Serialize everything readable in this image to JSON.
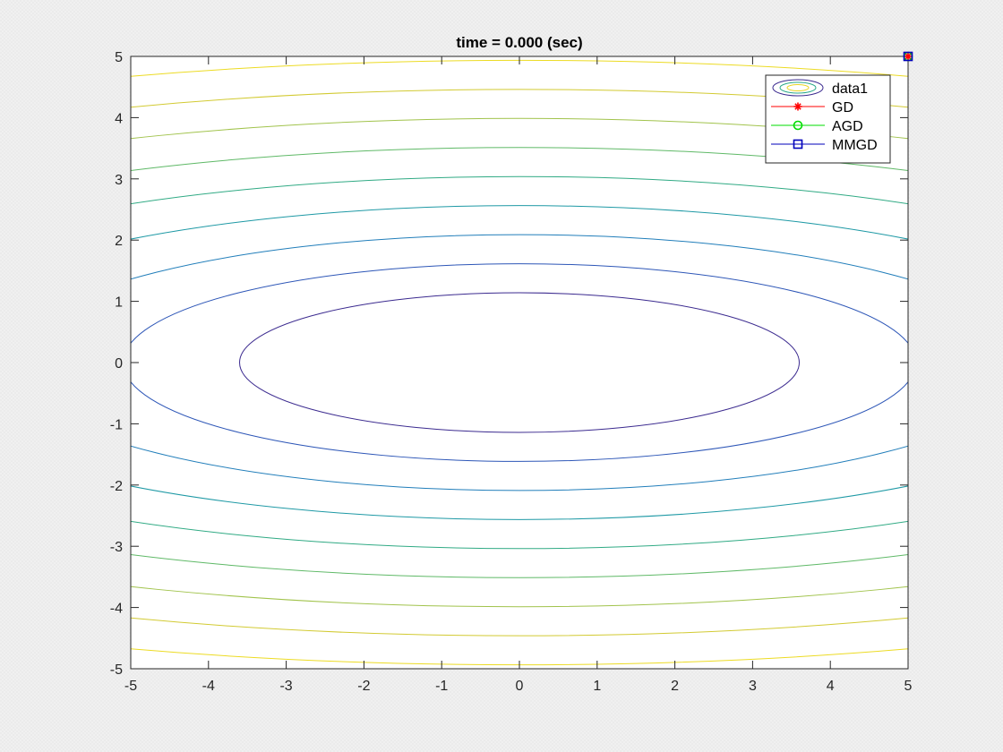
{
  "chart_data": {
    "type": "contour",
    "title": "time = 0.000 (sec)",
    "xlabel": "",
    "ylabel": "",
    "xlim": [
      -5,
      5
    ],
    "ylim": [
      -5,
      5
    ],
    "xticks": [
      "-5",
      "-4",
      "-3",
      "-2",
      "-1",
      "0",
      "1",
      "2",
      "3",
      "4",
      "5"
    ],
    "yticks": [
      "-5",
      "-4",
      "-3",
      "-2",
      "-1",
      "0",
      "1",
      "2",
      "3",
      "4",
      "5"
    ],
    "grid": false,
    "legend_position": "top-right",
    "contour": {
      "function": "x^2 + 10*y^2",
      "inner_semi_axes": [
        3.6,
        1.14
      ],
      "colormap": [
        "#3b2a8f",
        "#2a5fbf",
        "#1c8fb8",
        "#21a48f",
        "#55b86b",
        "#a6c44a",
        "#e0cc2a",
        "#f5e61e"
      ]
    },
    "series": [
      {
        "name": "data1",
        "type": "contour",
        "color": "#2a5fbf"
      },
      {
        "name": "GD",
        "type": "line",
        "marker": "asterisk",
        "color": "#ff0000",
        "x": [
          5
        ],
        "y": [
          5
        ]
      },
      {
        "name": "AGD",
        "type": "line",
        "marker": "circle",
        "color": "#00dd00",
        "x": [
          5
        ],
        "y": [
          5
        ]
      },
      {
        "name": "MMGD",
        "type": "line",
        "marker": "square",
        "color": "#0000bb",
        "x": [
          5
        ],
        "y": [
          5
        ]
      }
    ]
  }
}
